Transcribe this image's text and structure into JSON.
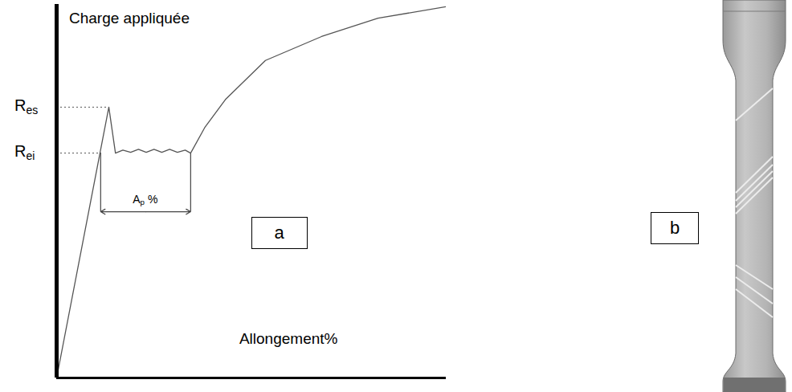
{
  "chart_data": {
    "type": "line",
    "y_label": "Charge appliquée",
    "x_label": "Allongement%",
    "x": [
      0,
      13.4,
      15.1,
      17,
      19,
      21,
      23,
      25,
      27,
      29,
      31,
      33,
      34.4,
      38,
      43.3,
      53.6,
      68,
      82.5,
      100
    ],
    "values": [
      0,
      72.5,
      60.2,
      61,
      60.4,
      61.2,
      60.4,
      61.2,
      60.4,
      61.2,
      60.4,
      61,
      60.2,
      67,
      74.5,
      85,
      91.4,
      96.3,
      99.4
    ],
    "color": "#555555",
    "xlim": [
      0,
      100
    ],
    "ylim": [
      0,
      100
    ],
    "xticks": [],
    "yticks": [],
    "tick_labels": false,
    "levels": [
      {
        "label": "R",
        "subscript": "es",
        "value": 72.5
      },
      {
        "label": "R",
        "subscript": "ei",
        "value": 60.2
      }
    ],
    "interval": {
      "label": "A",
      "subscript": "p",
      "suffix": " %",
      "from": 11.3,
      "to": 34.4,
      "at": 44.5
    },
    "panels": [
      "a",
      "b"
    ]
  }
}
